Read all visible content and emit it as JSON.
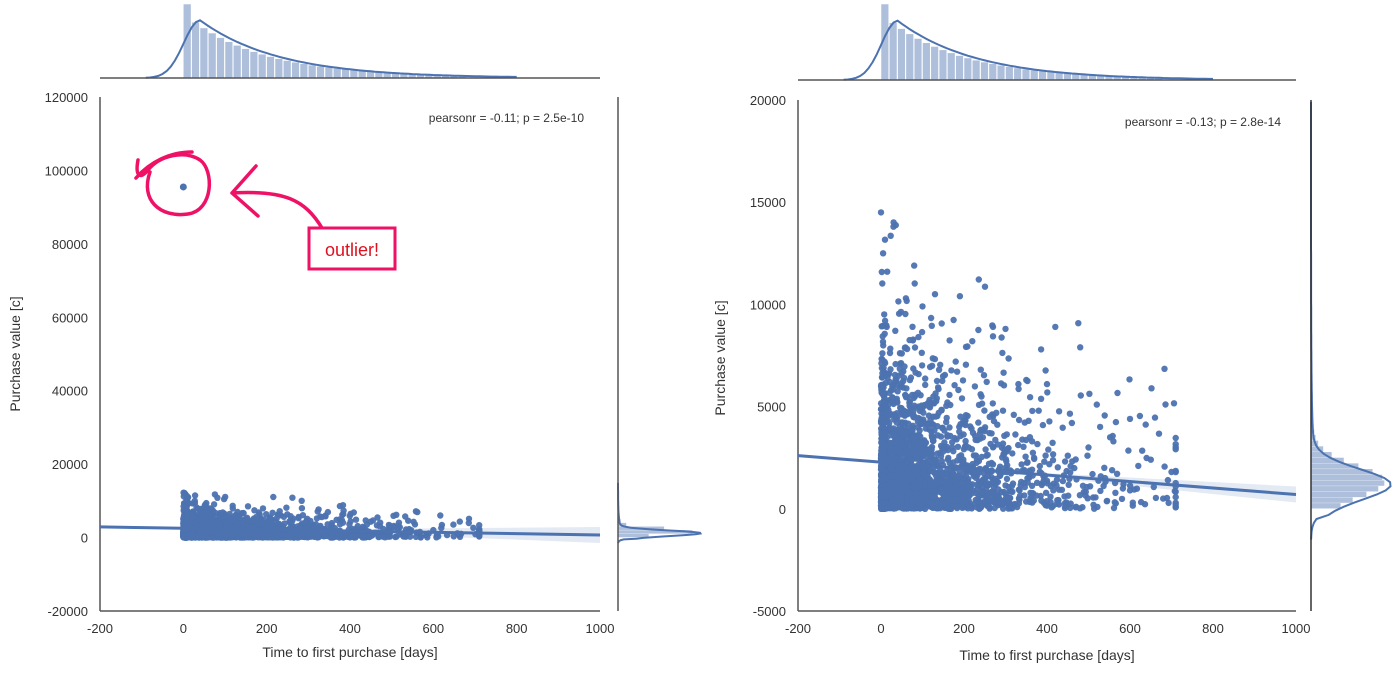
{
  "chart_data": [
    {
      "type": "scatter",
      "xlabel": "Time to first purchase [days]",
      "ylabel": "Purchase value [c]",
      "xlim": [
        -200,
        1000
      ],
      "ylim": [
        -20000,
        120000
      ],
      "xticks": [
        -200,
        0,
        200,
        400,
        600,
        800,
        1000
      ],
      "yticks": [
        -20000,
        0,
        20000,
        40000,
        60000,
        80000,
        100000,
        120000
      ],
      "annotation": "pearsonr = -0.11; p = 2.5e-10",
      "callout": {
        "text": "outlier!",
        "point": [
          0,
          95500
        ]
      },
      "regression": {
        "x": [
          -200,
          1000
        ],
        "y": [
          2900,
          700
        ]
      },
      "marker_color": "#4c72b0",
      "callout_color": "#ee1166",
      "marginal_x_histogram": true,
      "marginal_y_histogram": true,
      "outlier_points": [
        [
          0,
          95500
        ]
      ]
    },
    {
      "type": "scatter",
      "xlabel": "Time to first purchase [days]",
      "ylabel": "Purchase value [c]",
      "xlim": [
        -200,
        1000
      ],
      "ylim": [
        -5000,
        20000
      ],
      "xticks": [
        -200,
        0,
        200,
        400,
        600,
        800,
        1000
      ],
      "yticks": [
        -5000,
        0,
        5000,
        10000,
        15000,
        20000
      ],
      "annotation": "pearsonr = -0.13; p = 2.8e-14",
      "regression": {
        "x": [
          -200,
          1000
        ],
        "y": [
          2600,
          700
        ]
      },
      "marker_color": "#4c72b0",
      "marginal_x_histogram": true,
      "marginal_y_histogram": true,
      "sample_points": [
        [
          0,
          14500
        ],
        [
          30,
          13800
        ],
        [
          5,
          12500
        ],
        [
          80,
          11900
        ],
        [
          15,
          11600
        ],
        [
          130,
          10500
        ],
        [
          190,
          10400
        ],
        [
          60,
          10300
        ],
        [
          100,
          9900
        ],
        [
          270,
          8900
        ],
        [
          300,
          8800
        ],
        [
          420,
          8900
        ],
        [
          480,
          7900
        ],
        [
          220,
          8200
        ],
        [
          350,
          6300
        ],
        [
          180,
          7200
        ],
        [
          400,
          6100
        ],
        [
          520,
          5100
        ],
        [
          600,
          4400
        ],
        [
          700,
          1800
        ],
        [
          650,
          2400
        ],
        [
          560,
          3300
        ],
        [
          460,
          4200
        ],
        [
          380,
          4800
        ],
        [
          240,
          5600
        ],
        [
          140,
          6800
        ],
        [
          50,
          7600
        ],
        [
          90,
          8400
        ],
        [
          10,
          9200
        ],
        [
          160,
          5200
        ],
        [
          320,
          4600
        ],
        [
          500,
          3000
        ],
        [
          620,
          2100
        ],
        [
          680,
          500
        ],
        [
          600,
          900
        ],
        [
          540,
          1500
        ],
        [
          450,
          2600
        ],
        [
          250,
          3800
        ],
        [
          110,
          5100
        ]
      ]
    }
  ]
}
